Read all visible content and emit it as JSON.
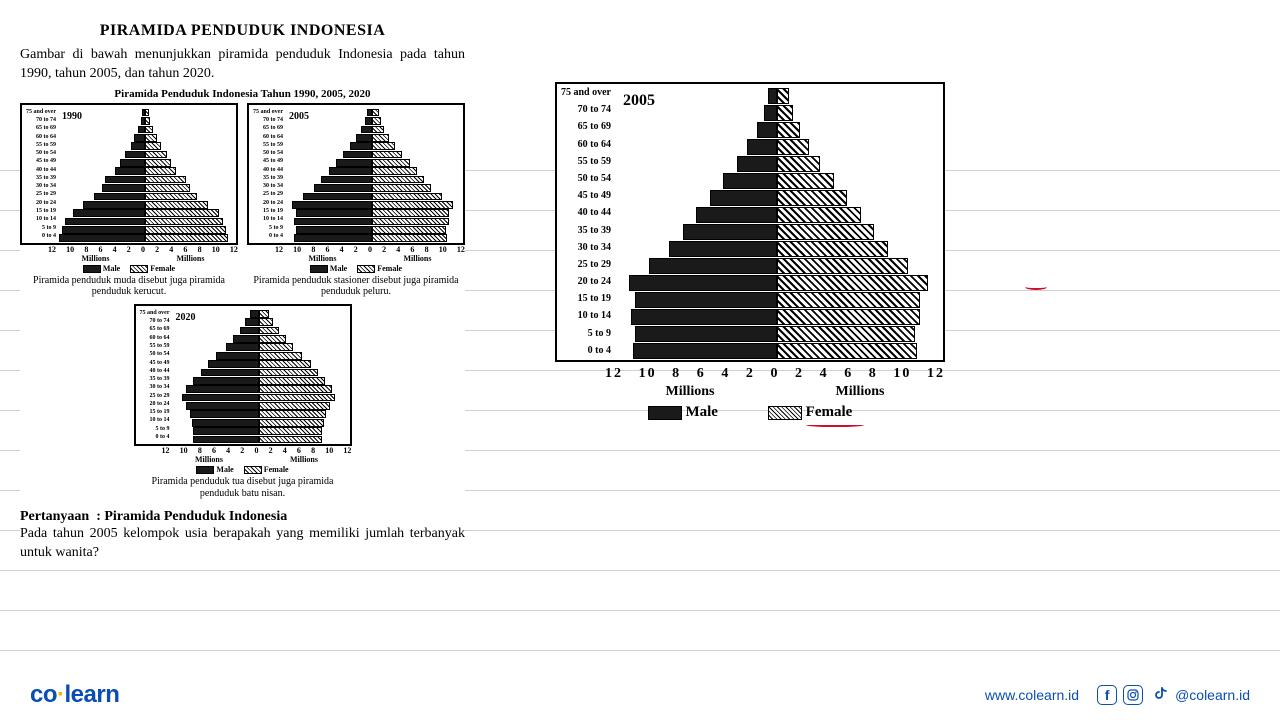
{
  "main_title": "PIRAMIDA PENDUDUK INDONESIA",
  "intro": "Gambar di bawah menunjukkan piramida penduduk Indonesia pada tahun 1990, tahun 2005, dan tahun 2020.",
  "subchart_title": "Piramida Penduduk Indonesia Tahun 1990, 2005, 2020",
  "age_groups": [
    "75 and over",
    "70 to 74",
    "65 to 69",
    "60 to 64",
    "55 to 59",
    "50 to 54",
    "45 to 49",
    "40 to 44",
    "35 to 39",
    "30 to 34",
    "25 to 29",
    "20 to 24",
    "15 to 19",
    "10 to 14",
    "5 to 9",
    "0 to 4"
  ],
  "age_groups_big": [
    "75 and over",
    "70 to 74",
    "65 to 69",
    "60 to 64",
    "55 to 59",
    "50 to 54",
    "45 to 49",
    "40 to 44",
    "35 to 39",
    "30 to 34",
    "25 to 29",
    "20 to 24",
    "15 to 19",
    "10 to 14",
    "5 to 9",
    "0 to 4"
  ],
  "axis_ticks": [
    "12",
    "10",
    "8",
    "6",
    "4",
    "2",
    "0",
    "2",
    "4",
    "6",
    "8",
    "10",
    "12"
  ],
  "axis_unit_left": "Millions",
  "axis_unit_right": "Millions",
  "legend_male": "Male",
  "legend_female": "Female",
  "max_value": 12,
  "charts": {
    "c1990": {
      "year": "1990",
      "male": [
        0.4,
        0.6,
        1.0,
        1.5,
        2.0,
        2.8,
        3.5,
        4.2,
        5.5,
        6.0,
        7.0,
        8.5,
        10.0,
        11.0,
        11.5,
        11.8
      ],
      "female": [
        0.5,
        0.7,
        1.1,
        1.6,
        2.2,
        3.0,
        3.6,
        4.3,
        5.6,
        6.2,
        7.2,
        8.7,
        10.2,
        10.8,
        11.2,
        11.5
      ],
      "caption": "Piramida penduduk muda disebut juga piramida penduduk kerucut."
    },
    "c2005": {
      "year": "2005",
      "male": [
        0.7,
        1.0,
        1.5,
        2.2,
        3.0,
        4.0,
        5.0,
        6.0,
        7.0,
        8.0,
        9.5,
        11.0,
        10.5,
        10.8,
        10.5,
        10.7
      ],
      "female": [
        0.9,
        1.2,
        1.7,
        2.4,
        3.2,
        4.2,
        5.2,
        6.2,
        7.2,
        8.2,
        9.7,
        11.2,
        10.6,
        10.6,
        10.2,
        10.4
      ],
      "caption": "Piramida penduduk stasioner disebut juga piramida penduduk peluru."
    },
    "c2020": {
      "year": "2020",
      "male": [
        1.2,
        1.8,
        2.5,
        3.5,
        4.5,
        5.8,
        7.0,
        8.0,
        9.0,
        10.0,
        10.5,
        10.0,
        9.5,
        9.2,
        9.0,
        9.0
      ],
      "female": [
        1.5,
        2.0,
        2.8,
        3.8,
        4.8,
        6.0,
        7.2,
        8.2,
        9.2,
        10.2,
        10.6,
        9.8,
        9.3,
        9.0,
        8.8,
        8.8
      ],
      "caption": "Piramida penduduk tua disebut juga piramida penduduk batu nisan."
    }
  },
  "question_label": "Pertanyaan  : Piramida Penduduk Indonesia",
  "question_text": "Pada tahun 2005 kelompok usia berapakah yang memiliki jumlah terbanyak untuk wanita?",
  "big_chart_highlight_row": 11,
  "footer": {
    "logo_co": "co",
    "logo_dot": "·",
    "logo_learn": "learn",
    "url": "www.colearn.id",
    "handle": "@colearn.id"
  },
  "colors": {
    "brand_blue": "#0a4db3",
    "brand_yellow": "#f5b400",
    "red_mark": "#c8102e",
    "rule_line": "#d0d0d0",
    "black": "#1a1a1a"
  },
  "ruled_line_positions": [
    170,
    210,
    250,
    290,
    330,
    370,
    410,
    450,
    490,
    530,
    570,
    610,
    650
  ]
}
